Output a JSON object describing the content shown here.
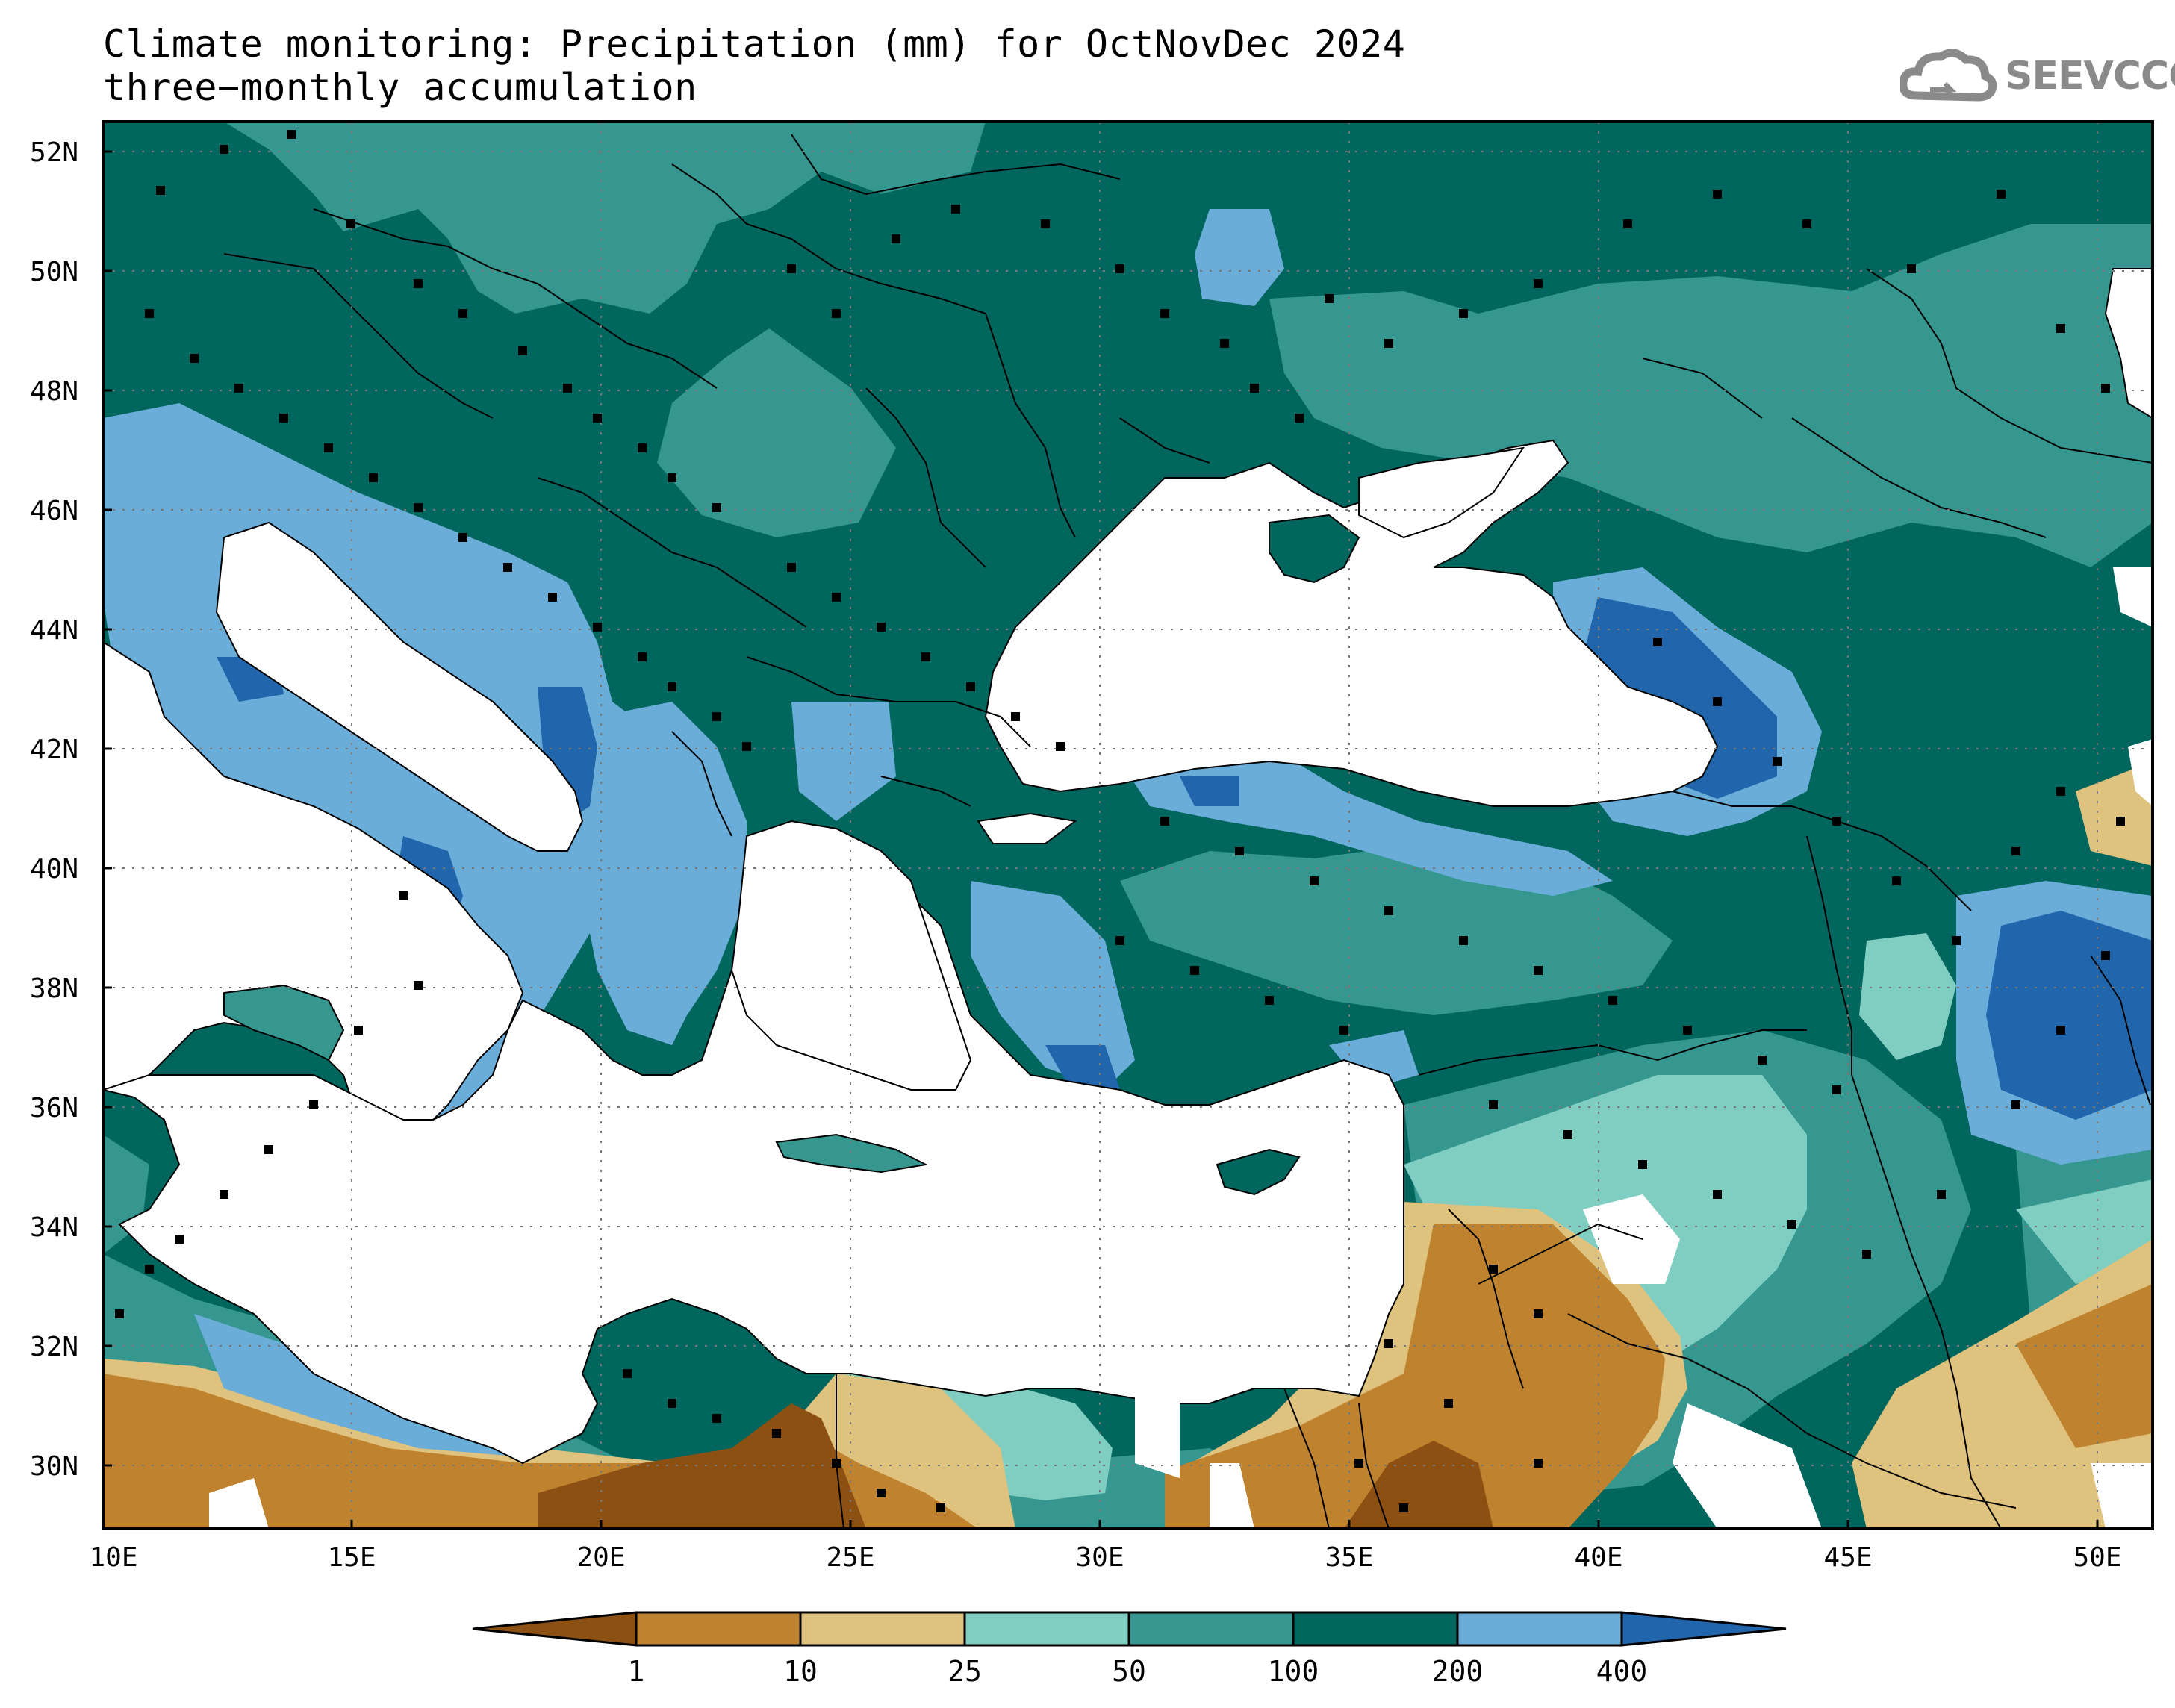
{
  "title": {
    "line1": "Climate monitoring: Precipitation (mm) for OctNovDec 2024",
    "line2": "three−monthly accumulation"
  },
  "logo": {
    "text": "SEEVCCC",
    "icon": "cloud-icon"
  },
  "axes": {
    "lat_labels": [
      "52N",
      "50N",
      "48N",
      "46N",
      "44N",
      "42N",
      "40N",
      "38N",
      "36N",
      "34N",
      "32N",
      "30N"
    ],
    "lon_labels": [
      "10E",
      "15E",
      "20E",
      "25E",
      "30E",
      "35E",
      "40E",
      "45E",
      "50E"
    ]
  },
  "colorbar": {
    "labels": [
      "1",
      "10",
      "25",
      "50",
      "100",
      "200",
      "400"
    ],
    "colors": [
      "#8c5012",
      "#bf832f",
      "#dfc27d",
      "#80cdc1",
      "#35978f",
      "#01665e",
      "#6aadd9",
      "#2166ac"
    ]
  },
  "colors": {
    "sea": "#ffffff",
    "frame": "#000000",
    "station_marker": "#000000",
    "grid": "#777777"
  }
}
